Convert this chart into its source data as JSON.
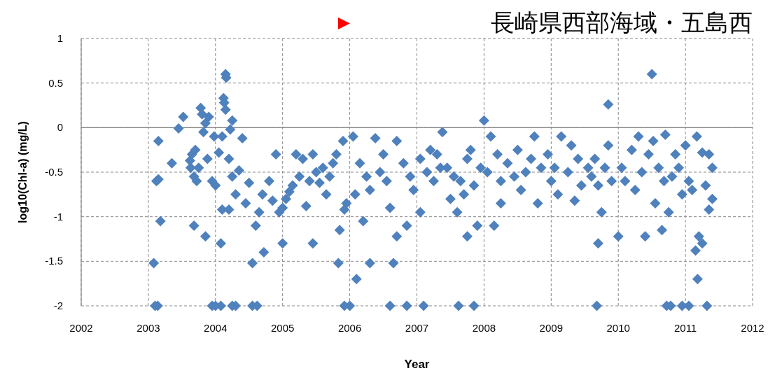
{
  "chart_data": {
    "type": "scatter",
    "title": "長崎県西部海域・五島西",
    "xlabel": "Year",
    "ylabel": "log10(Chl-a) (mg/L)",
    "color": "#4f81bd",
    "marker": "diamond",
    "grid": true,
    "xlim": [
      2002,
      2012
    ],
    "ylim": [
      -2,
      1
    ],
    "xticks": [
      2002,
      2003,
      2004,
      2005,
      2006,
      2007,
      2008,
      2009,
      2010,
      2011,
      2012
    ],
    "yticks": [
      -2,
      -1.5,
      -1,
      -0.5,
      0,
      0.5,
      1
    ],
    "x": [
      2003.15,
      2003.12,
      2003.15,
      2003.18,
      2003.08,
      2003.1,
      2003.14,
      2003.35,
      2003.45,
      2003.52,
      2003.62,
      2003.63,
      2003.65,
      2003.68,
      2003.7,
      2003.72,
      2003.75,
      2003.78,
      2003.8,
      2003.82,
      2003.85,
      2003.88,
      2003.9,
      2003.95,
      2003.98,
      2003.68,
      2003.85,
      2004.0,
      2004.05,
      2004.08,
      2004.1,
      2004.1,
      2004.12,
      2004.13,
      2004.15,
      2004.16,
      2004.15,
      2004.2,
      2004.22,
      2004.25,
      2004.25,
      2004.3,
      2004.2,
      2004.35,
      2004.4,
      2004.45,
      2004.5,
      2004.55,
      2004.6,
      2004.65,
      2004.72,
      2004.7,
      2004.8,
      2004.85,
      2004.9,
      2004.95,
      2005.0,
      2003.95,
      2004.0,
      2004.08,
      2004.25,
      2004.3,
      2004.55,
      2004.62,
      2005.0,
      2005.05,
      2005.1,
      2005.15,
      2005.2,
      2005.25,
      2005.3,
      2005.35,
      2005.4,
      2005.45,
      2005.45,
      2005.5,
      2005.55,
      2005.6,
      2005.65,
      2005.7,
      2005.75,
      2005.8,
      2005.83,
      2005.85,
      2005.9,
      2005.95,
      2005.92,
      2005.92,
      2006.0,
      2006.05,
      2006.08,
      2006.1,
      2006.15,
      2006.2,
      2006.25,
      2006.3,
      2006.3,
      2006.38,
      2006.45,
      2006.5,
      2006.55,
      2006.6,
      2006.6,
      2006.65,
      2006.7,
      2006.7,
      2006.8,
      2006.85,
      2006.85,
      2006.9,
      2006.95,
      2007.05,
      2007.05,
      2007.1,
      2007.15,
      2007.2,
      2007.25,
      2007.3,
      2007.35,
      2007.38,
      2007.45,
      2007.5,
      2007.55,
      2007.6,
      2007.62,
      2007.65,
      2007.7,
      2007.75,
      2007.75,
      2007.8,
      2007.85,
      2007.85,
      2007.9,
      2007.95,
      2008.0,
      2008.05,
      2008.1,
      2008.15,
      2008.2,
      2008.25,
      2008.25,
      2008.35,
      2008.45,
      2008.5,
      2008.55,
      2008.62,
      2008.7,
      2008.75,
      2008.8,
      2008.85,
      2008.95,
      2009.0,
      2009.05,
      2009.1,
      2009.15,
      2009.25,
      2009.3,
      2009.35,
      2009.4,
      2009.45,
      2009.55,
      2009.6,
      2009.65,
      2009.7,
      2009.68,
      2009.7,
      2009.75,
      2009.8,
      2009.85,
      2009.85,
      2009.9,
      2010.0,
      2010.05,
      2010.1,
      2010.2,
      2010.25,
      2010.3,
      2010.35,
      2010.4,
      2010.45,
      2010.5,
      2010.52,
      2010.55,
      2010.6,
      2010.65,
      2010.68,
      2010.7,
      2010.72,
      2010.78,
      2010.75,
      2010.8,
      2010.85,
      2010.9,
      2010.95,
      2011.0,
      2011.05,
      2010.95,
      2011.05,
      2011.1,
      2011.15,
      2011.17,
      2011.18,
      2011.2,
      2011.25,
      2011.25,
      2011.3,
      2011.35,
      2011.35,
      2011.32,
      2011.4,
      2011.4
    ],
    "values": [
      -0.15,
      -0.6,
      -0.58,
      -1.05,
      -1.52,
      -2,
      -2,
      -0.4,
      -0.01,
      0.12,
      -0.37,
      -0.45,
      -0.3,
      -0.55,
      -0.25,
      -0.6,
      -0.45,
      0.22,
      0.15,
      -0.05,
      0.05,
      -0.35,
      0.12,
      -0.6,
      -0.1,
      -1.1,
      -1.22,
      -0.65,
      -0.28,
      -1.3,
      -0.92,
      -0.1,
      0.33,
      0.28,
      0.6,
      0.56,
      0.2,
      -0.35,
      -0.02,
      0.08,
      -0.55,
      -0.75,
      -0.92,
      -0.48,
      -0.12,
      -0.85,
      -0.62,
      -1.52,
      -1.1,
      -0.95,
      -1.4,
      -0.75,
      -0.6,
      -0.82,
      -0.3,
      -0.95,
      -1.3,
      -2,
      -2,
      -2,
      -2,
      -2,
      -2,
      -2,
      -0.9,
      -0.8,
      -0.72,
      -0.65,
      -0.3,
      -0.55,
      -0.35,
      -0.88,
      -0.6,
      -0.3,
      -1.3,
      -0.5,
      -0.62,
      -0.45,
      -0.75,
      -0.55,
      -0.4,
      -0.3,
      -1.52,
      -1.15,
      -0.15,
      -0.85,
      -0.92,
      -2,
      -2,
      -0.1,
      -0.75,
      -1.7,
      -0.4,
      -1.05,
      -0.55,
      -0.7,
      -1.52,
      -0.12,
      -0.5,
      -0.3,
      -0.6,
      -0.9,
      -2,
      -1.52,
      -0.15,
      -1.22,
      -0.4,
      -1.1,
      -2,
      -0.55,
      -0.7,
      -0.35,
      -0.95,
      -2,
      -0.5,
      -0.25,
      -0.6,
      -0.3,
      -0.45,
      -0.05,
      -0.45,
      -0.8,
      -0.55,
      -0.95,
      -2,
      -0.6,
      -0.75,
      -1.22,
      -0.35,
      -0.25,
      -2,
      -0.65,
      -1.1,
      -0.45,
      0.08,
      -0.5,
      -0.1,
      -1.1,
      -0.3,
      -0.6,
      -0.85,
      -0.4,
      -0.55,
      -0.25,
      -0.7,
      -0.5,
      -0.35,
      -0.1,
      -0.85,
      -0.45,
      -0.3,
      -0.6,
      -0.45,
      -0.75,
      -0.1,
      -0.5,
      -0.2,
      -0.82,
      -0.35,
      -0.65,
      -0.45,
      -0.55,
      -0.35,
      -0.65,
      -2,
      -1.3,
      -0.95,
      -0.45,
      0.26,
      -0.2,
      -0.6,
      -1.22,
      -0.45,
      -0.6,
      -0.25,
      -0.7,
      -0.1,
      -0.5,
      -1.22,
      -0.3,
      0.6,
      -0.15,
      -0.85,
      -0.45,
      -1.15,
      -0.6,
      -0.08,
      -2,
      -2,
      -0.95,
      -0.55,
      -0.3,
      -0.45,
      -0.75,
      -0.2,
      -0.6,
      -2,
      -2,
      -0.7,
      -1.38,
      -0.1,
      -1.7,
      -1.22,
      -1.3,
      -0.28,
      -0.65,
      -0.92,
      -0.3,
      -2,
      -0.45,
      -0.8
    ]
  }
}
